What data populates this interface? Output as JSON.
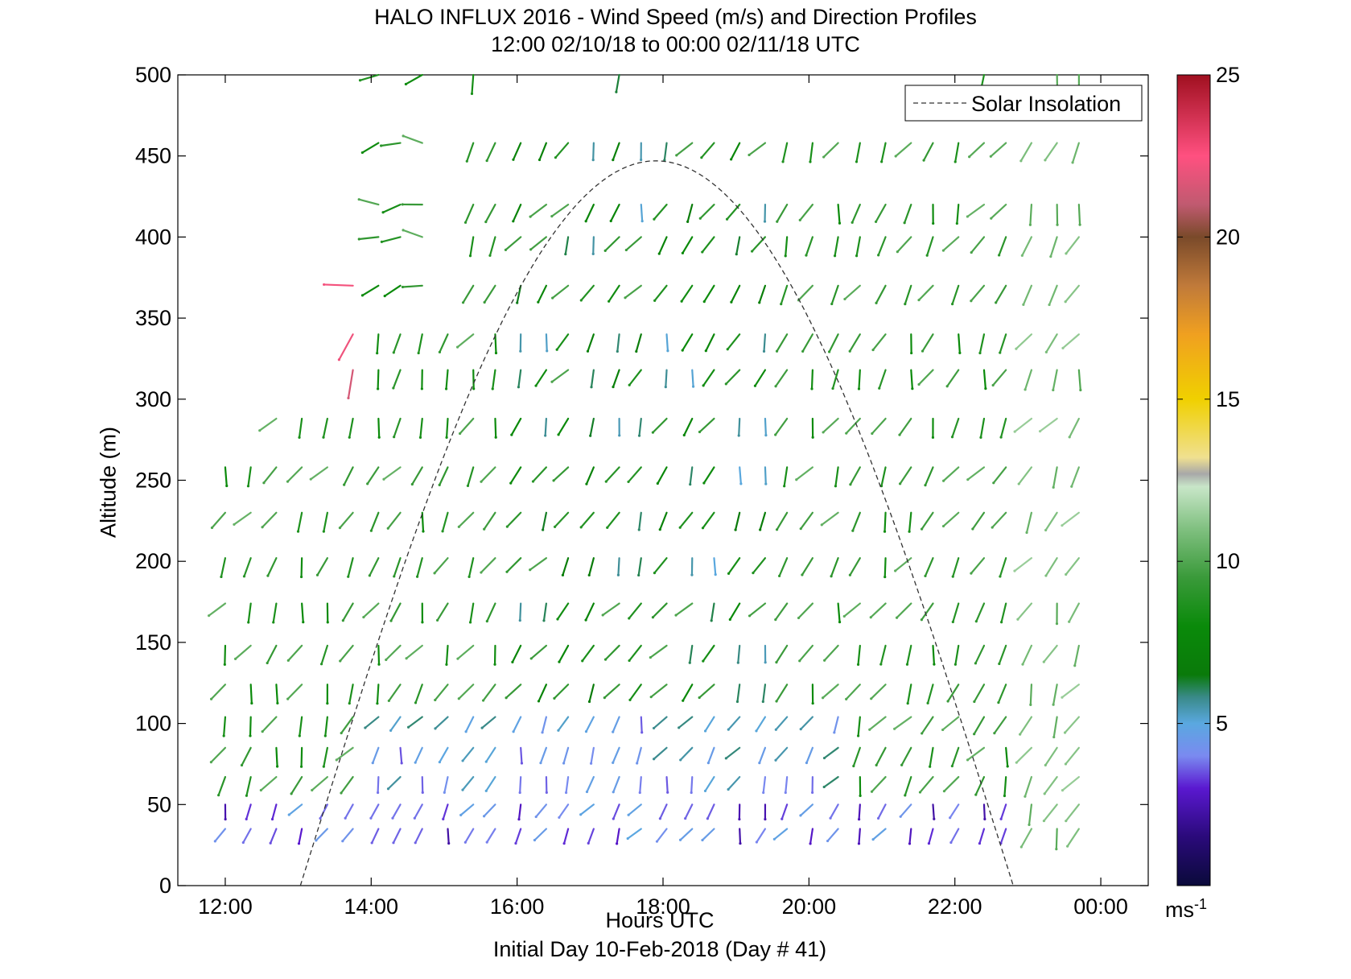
{
  "chart_data": {
    "type": "wind-barb",
    "title": "HALO INFLUX 2016 - Wind Speed (m/s) and Direction Profiles",
    "subtitle": "12:00 02/10/18 to 00:00 02/11/18  UTC",
    "xlabel": "Hours UTC",
    "footer": "Initial Day 10-Feb-2018 (Day # 41)",
    "ylabel": "Altitude (m)",
    "x_ticks": [
      "12:00",
      "14:00",
      "16:00",
      "18:00",
      "20:00",
      "22:00",
      "00:00"
    ],
    "x_tick_hours": [
      12,
      14,
      16,
      18,
      20,
      22,
      24
    ],
    "xlim": [
      11.35,
      24.65
    ],
    "y_ticks": [
      "0",
      "50",
      "100",
      "150",
      "200",
      "250",
      "300",
      "350",
      "400",
      "450",
      "500"
    ],
    "ylim": [
      0,
      500
    ],
    "legend": {
      "label": "Solar Insolation",
      "position": "top-right"
    },
    "insolation_curve": {
      "start_hour": 13.03,
      "end_hour": 22.8,
      "peak_hour": 17.9,
      "peak_altitude": 447
    },
    "colorbar": {
      "ticks": [
        "5",
        "10",
        "15",
        "20",
        "25"
      ],
      "tick_values": [
        5,
        10,
        15,
        20,
        25
      ],
      "range": [
        0,
        25
      ],
      "unit": "ms",
      "unit_exp": "-1",
      "stops": [
        [
          0,
          "#0a0a3a"
        ],
        [
          1.5,
          "#2a0a7a"
        ],
        [
          3,
          "#5a18d0"
        ],
        [
          4,
          "#7a8af0"
        ],
        [
          5,
          "#5aa8e0"
        ],
        [
          5.8,
          "#3a8a8a"
        ],
        [
          6.5,
          "#0a7a0a"
        ],
        [
          8,
          "#0a8a0a"
        ],
        [
          9.5,
          "#3a9a3a"
        ],
        [
          11,
          "#80c080"
        ],
        [
          12.3,
          "#c8e6c8"
        ],
        [
          12.7,
          "#a8a8a8"
        ],
        [
          13.2,
          "#f0e090"
        ],
        [
          15,
          "#f0d000"
        ],
        [
          17,
          "#f0a020"
        ],
        [
          18.5,
          "#c07a3a"
        ],
        [
          20,
          "#7a4a2a"
        ],
        [
          21,
          "#c05a70"
        ],
        [
          22.5,
          "#ff5080"
        ],
        [
          25,
          "#a01020"
        ]
      ]
    },
    "wind_levels": [
      35,
      50,
      67,
      85,
      104,
      124,
      148,
      174,
      202,
      230,
      258,
      288,
      318,
      340,
      370,
      400,
      420,
      458,
      500
    ],
    "wind_profiles": [
      {
        "h": 12.0,
        "from": 0,
        "to": 10
      },
      {
        "h": 12.35,
        "from": 0,
        "to": 10
      },
      {
        "h": 12.7,
        "from": 0,
        "to": 11
      },
      {
        "h": 13.05,
        "from": 0,
        "to": 10
      },
      {
        "h": 13.4,
        "from": 0,
        "to": 10
      },
      {
        "h": 13.75,
        "from": 0,
        "to": 13
      },
      {
        "h": 14.1,
        "from": 0,
        "to": 18
      },
      {
        "h": 14.4,
        "from": 0,
        "to": 18
      },
      {
        "h": 14.7,
        "from": 0,
        "to": 16
      },
      {
        "h": 15.05,
        "from": 0,
        "to": 13
      },
      {
        "h": 15.4,
        "from": 0,
        "to": 17
      },
      {
        "h": 15.7,
        "from": 0,
        "to": 17
      },
      {
        "h": 16.05,
        "from": 0,
        "to": 17
      },
      {
        "h": 16.4,
        "from": 0,
        "to": 17
      },
      {
        "h": 16.7,
        "from": 0,
        "to": 18
      },
      {
        "h": 17.05,
        "from": 0,
        "to": 18
      },
      {
        "h": 17.4,
        "from": 0,
        "to": 18
      },
      {
        "h": 17.7,
        "from": 0,
        "to": 18
      },
      {
        "h": 18.05,
        "from": 0,
        "to": 18
      },
      {
        "h": 18.4,
        "from": 0,
        "to": 18
      },
      {
        "h": 18.7,
        "from": 0,
        "to": 18
      },
      {
        "h": 19.05,
        "from": 0,
        "to": 18
      },
      {
        "h": 19.4,
        "from": 0,
        "to": 18
      },
      {
        "h": 19.7,
        "from": 0,
        "to": 17
      },
      {
        "h": 20.05,
        "from": 0,
        "to": 17
      },
      {
        "h": 20.4,
        "from": 0,
        "to": 17
      },
      {
        "h": 20.7,
        "from": 0,
        "to": 17
      },
      {
        "h": 21.05,
        "from": 0,
        "to": 17
      },
      {
        "h": 21.4,
        "from": 0,
        "to": 17
      },
      {
        "h": 21.7,
        "from": 0,
        "to": 16
      },
      {
        "h": 22.05,
        "from": 0,
        "to": 16
      },
      {
        "h": 22.4,
        "from": 0,
        "to": 16
      },
      {
        "h": 22.7,
        "from": 0,
        "to": 16
      },
      {
        "h": 23.05,
        "from": 0,
        "to": 17
      },
      {
        "h": 23.4,
        "from": 0,
        "to": 17
      },
      {
        "h": 23.7,
        "from": 0,
        "to": 17
      }
    ]
  }
}
